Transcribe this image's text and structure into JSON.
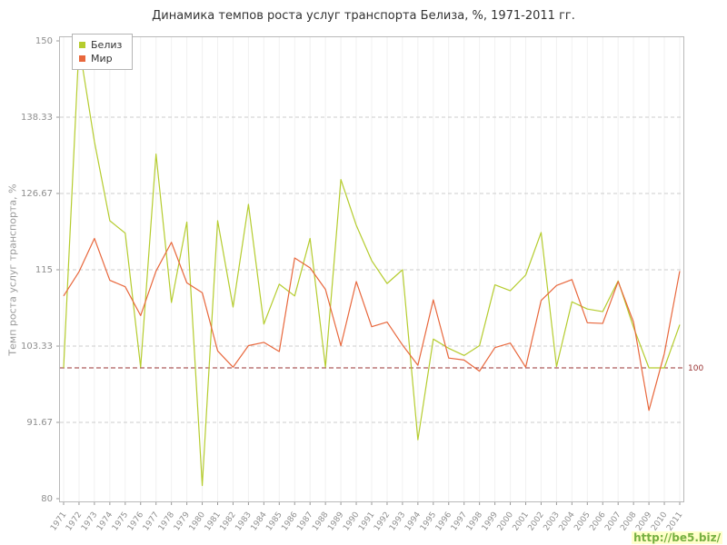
{
  "title": "Динамика темпов роста услуг транспорта Белиза, %, 1971-2011 гг.",
  "watermark": "http://be5.biz/",
  "legend": {
    "items": [
      {
        "label": "Белиз",
        "color": "#b5cc2e"
      },
      {
        "label": "Мир",
        "color": "#e8673c"
      }
    ]
  },
  "chart_data": {
    "type": "line",
    "title": "Динамика темпов роста услуг транспорта Белиза, %, 1971-2011 гг.",
    "xlabel": "",
    "ylabel": "Темп роста услуг транспорта, %",
    "ylim": [
      80,
      150
    ],
    "yticks": [
      150,
      138.33,
      126.67,
      115,
      103.33,
      91.67,
      80
    ],
    "ytick_labels": [
      "150",
      "138.33",
      "126.67",
      "115",
      "103.33",
      "91.67",
      "80"
    ],
    "grid": true,
    "legend_position": "top-left",
    "reference_line": {
      "value": 100,
      "label": "100",
      "color": "#993333",
      "style": "dashed"
    },
    "x": [
      1971,
      1972,
      1973,
      1974,
      1975,
      1976,
      1977,
      1978,
      1979,
      1980,
      1981,
      1982,
      1983,
      1984,
      1985,
      1986,
      1987,
      1988,
      1989,
      1990,
      1991,
      1992,
      1993,
      1994,
      1995,
      1996,
      1997,
      1998,
      1999,
      2000,
      2001,
      2002,
      2003,
      2004,
      2005,
      2006,
      2007,
      2008,
      2009,
      2010,
      2011
    ],
    "series": [
      {
        "name": "Белиз",
        "color": "#b5cc2e",
        "values": [
          100.0,
          149.4,
          134.6,
          122.5,
          120.6,
          100.1,
          132.7,
          110.0,
          122.3,
          82.0,
          122.5,
          109.3,
          125.0,
          106.7,
          112.8,
          111.0,
          119.8,
          100.1,
          128.8,
          121.8,
          116.4,
          112.9,
          115.0,
          89.0,
          104.4,
          103.0,
          101.9,
          103.4,
          112.7,
          111.8,
          114.2,
          120.7,
          100.2,
          110.1,
          109.0,
          108.6,
          113.3,
          106.2,
          100.0,
          100.0,
          106.6
        ]
      },
      {
        "name": "Мир",
        "color": "#e8673c",
        "values": [
          111.0,
          114.7,
          119.8,
          113.4,
          112.4,
          108.0,
          114.8,
          119.2,
          113.0,
          111.5,
          102.6,
          100.1,
          103.4,
          103.9,
          102.5,
          116.8,
          115.3,
          112.0,
          103.4,
          113.2,
          106.3,
          107.0,
          103.5,
          100.4,
          110.4,
          101.5,
          101.2,
          99.5,
          103.1,
          103.8,
          100.1,
          110.3,
          112.6,
          113.5,
          106.9,
          106.8,
          113.2,
          107.0,
          93.5,
          102.2,
          114.8
        ]
      }
    ]
  }
}
